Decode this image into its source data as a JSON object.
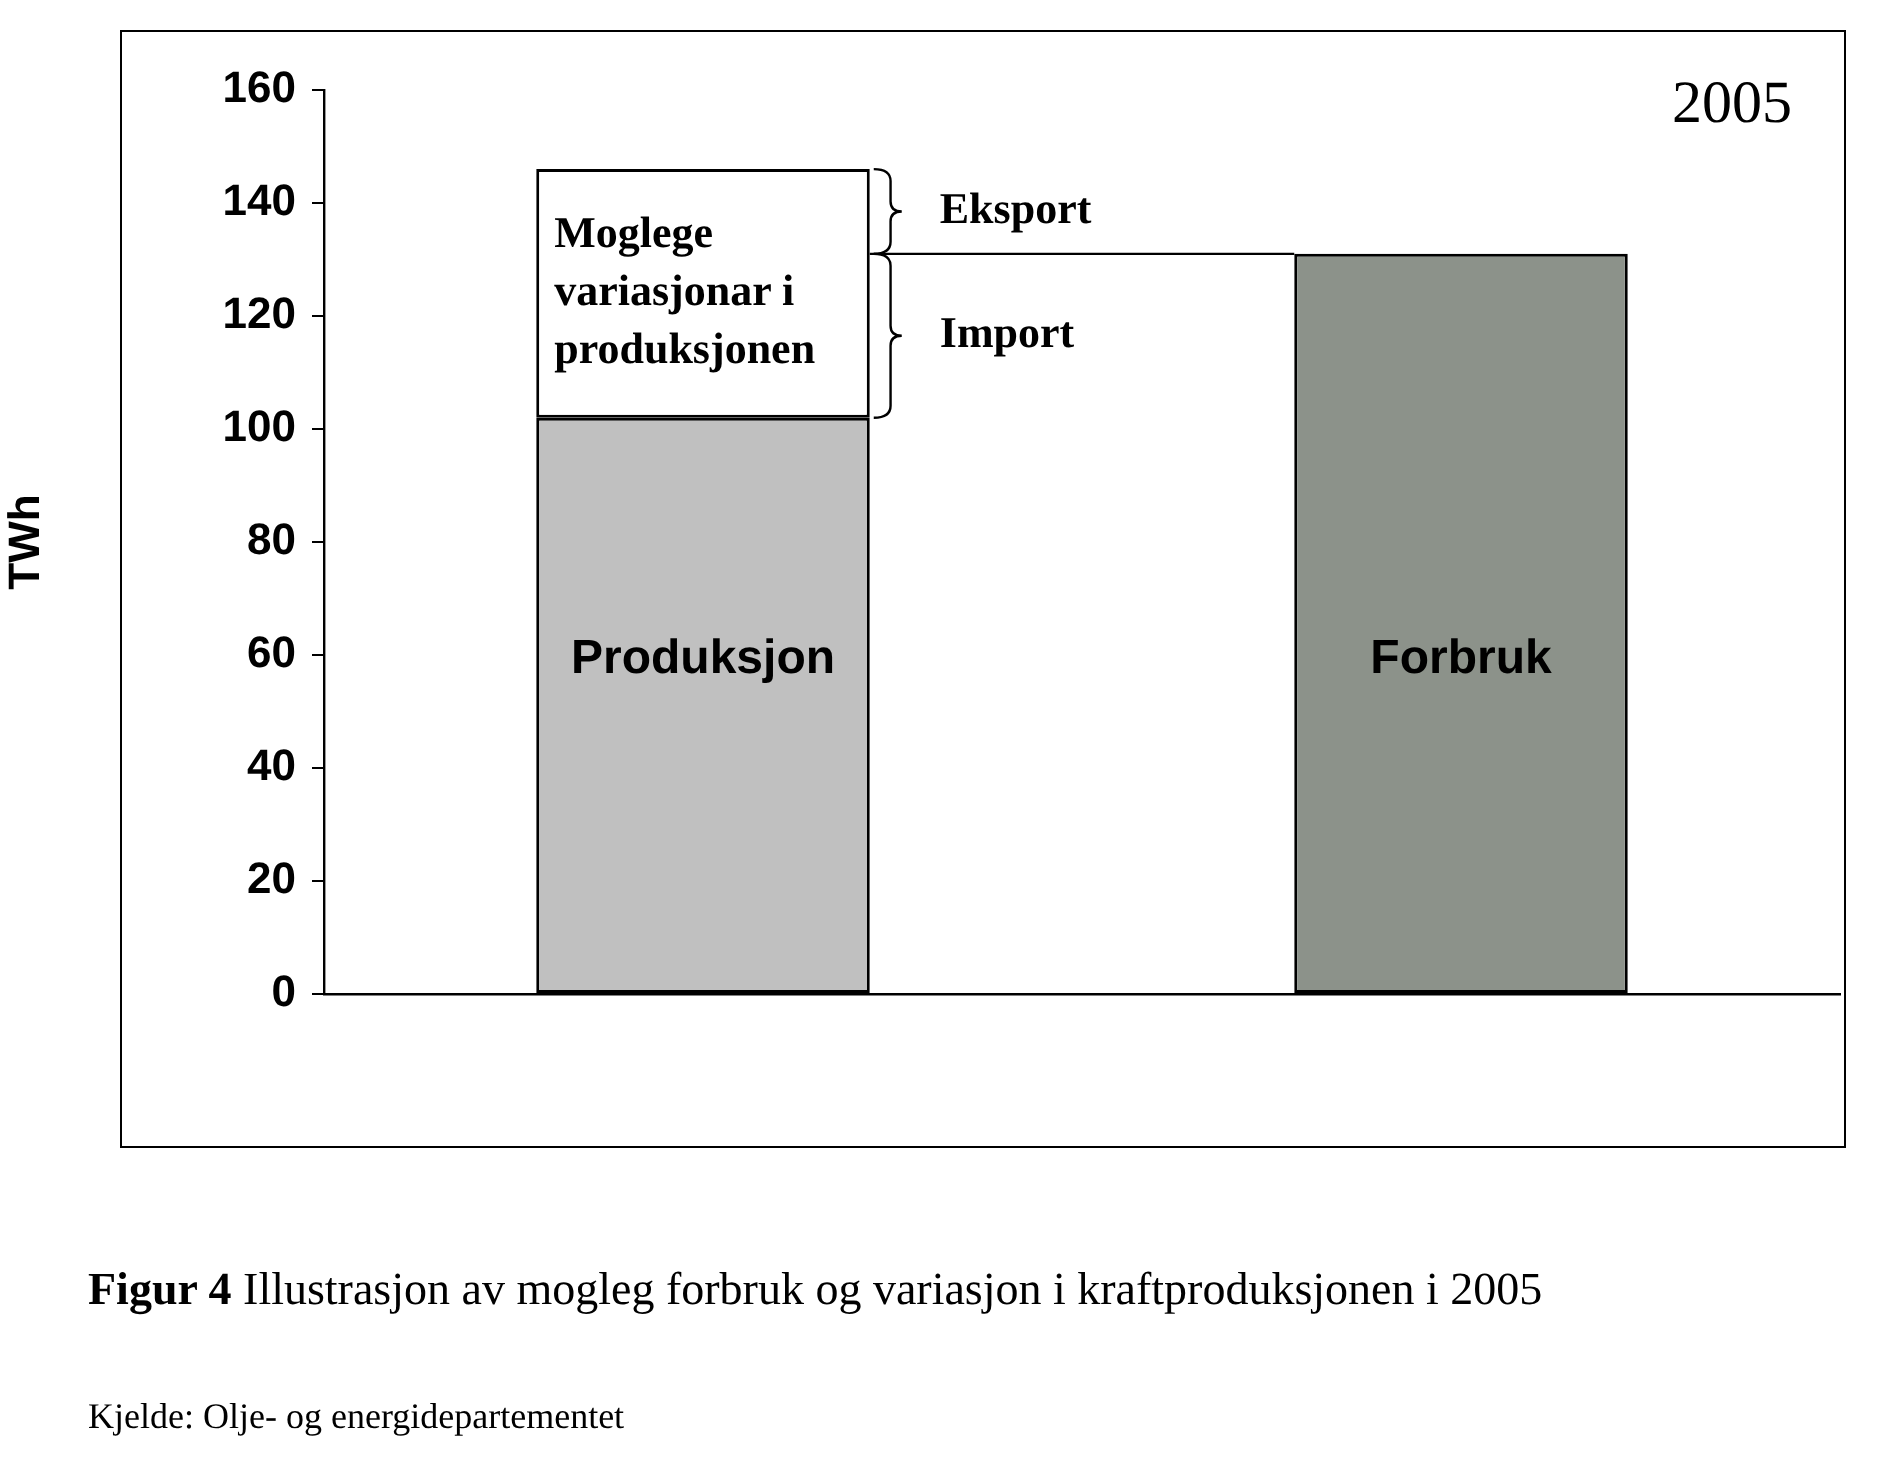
{
  "chart_data": {
    "type": "bar",
    "title": "2005",
    "ylabel": "TWh",
    "categories": [
      "Produksjon",
      "Forbruk"
    ],
    "stacked": true,
    "series": [
      {
        "colors": [
          "#c0c0c0",
          "#8c928a"
        ],
        "values": [
          102,
          131
        ]
      },
      {
        "name": "Moglege variasjonar i produksjonen",
        "color": "#ffffff",
        "values": [
          44,
          null
        ]
      }
    ],
    "ylim": [
      0,
      160
    ],
    "yticks": [
      0,
      20,
      40,
      60,
      80,
      100,
      120,
      140,
      160
    ],
    "ref_lines": [
      {
        "axis": "y",
        "value": 131
      }
    ],
    "grid": false,
    "legend": false,
    "annotations": [
      "Eksport",
      "Import",
      "Figur 4",
      "Illustrasjon av mogleg forbruk og variasjon i kraftproduksjonen i 2005",
      "Kjelde: Olje- og energidepartementet"
    ]
  }
}
